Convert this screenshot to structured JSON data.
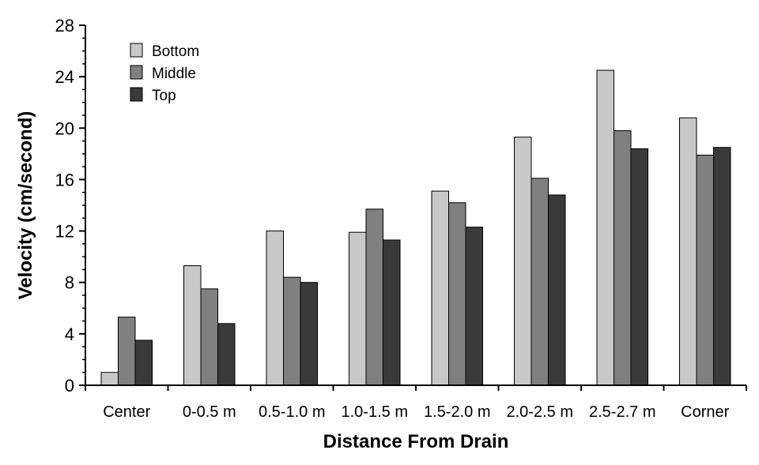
{
  "chart_data": {
    "type": "bar",
    "title": "",
    "xlabel": "Distance From Drain",
    "ylabel": "Velocity (cm/second)",
    "ylim": [
      0,
      28
    ],
    "yticks": [
      0,
      4,
      8,
      12,
      16,
      20,
      24,
      28
    ],
    "categories": [
      "Center",
      "0-0.5 m",
      "0.5-1.0 m",
      "1.0-1.5 m",
      "1.5-2.0 m",
      "2.0-2.5 m",
      "2.5-2.7 m",
      "Corner"
    ],
    "series": [
      {
        "name": "Bottom",
        "color": "#c8c8c8",
        "values": [
          1.0,
          9.3,
          12.0,
          11.9,
          15.1,
          19.3,
          24.5,
          20.8
        ]
      },
      {
        "name": "Middle",
        "color": "#808080",
        "values": [
          5.3,
          7.5,
          8.4,
          13.7,
          14.2,
          16.1,
          19.8,
          17.9
        ]
      },
      {
        "name": "Top",
        "color": "#3a3a3a",
        "values": [
          3.5,
          4.8,
          8.0,
          11.3,
          12.3,
          14.8,
          18.4,
          18.5
        ]
      }
    ],
    "legend_position": "top-left",
    "grid": false
  }
}
